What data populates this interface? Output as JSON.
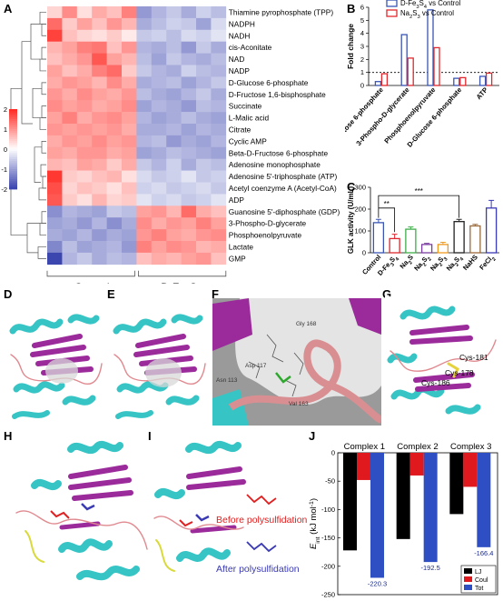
{
  "panel_labels": [
    "A",
    "B",
    "C",
    "D",
    "E",
    "F",
    "G",
    "H",
    "I",
    "J"
  ],
  "chart_data": [
    {
      "panel": "A",
      "type": "heatmap",
      "rows": [
        "Thiamine pyrophosphate (TPP)",
        "NADPH",
        "NADH",
        "cis-Aconitate",
        "NAD",
        "NADP",
        "D-Glucose 6-phosphate",
        "D-Fructose 1,6-bisphosphate",
        "Succinate",
        "L-Malic acid",
        "Citrate",
        "Cyclic AMP",
        "Beta-D-Fructose 6-phosphate",
        "Adenosine monophosphate",
        "Adenosine 5'-triphosphate (ATP)",
        "Acetyl coenzyme A (Acetyl-CoA)",
        "ADP",
        "Guanosine 5'-diphosphate (GDP)",
        "3-Phospho-D-glycerate",
        "Phosphoenolpyruvate",
        "Lactate",
        "GMP"
      ],
      "groups": [
        "Control",
        "D-Fe3S4"
      ],
      "group_sizes": [
        6,
        6
      ],
      "colorbar_ticks": [
        "2",
        "1",
        "0",
        "-1",
        "-2"
      ],
      "zlim": [
        -2,
        2
      ],
      "values": [
        [
          0.4,
          1.1,
          0.3,
          0.8,
          0.6,
          1.2,
          -1.1,
          -0.8,
          -0.6,
          -0.9,
          -0.5,
          -0.7
        ],
        [
          1.4,
          0.5,
          0.9,
          0.6,
          1.0,
          0.7,
          -0.9,
          -0.7,
          -0.5,
          -0.6,
          -1.0,
          -0.4
        ],
        [
          1.8,
          0.6,
          0.4,
          0.3,
          0.5,
          0.2,
          -0.6,
          -0.5,
          -0.7,
          -0.4,
          -0.5,
          -0.3
        ],
        [
          0.7,
          0.9,
          1.2,
          1.3,
          0.6,
          1.0,
          -0.8,
          -0.9,
          -0.7,
          -1.1,
          -0.6,
          -0.9
        ],
        [
          0.6,
          0.8,
          1.0,
          1.6,
          0.9,
          0.7,
          -0.7,
          -1.0,
          -0.6,
          -0.8,
          -0.9,
          -0.7
        ],
        [
          0.9,
          0.6,
          0.8,
          1.2,
          1.4,
          0.5,
          -0.6,
          -0.8,
          -0.9,
          -0.5,
          -0.7,
          -0.8
        ],
        [
          0.8,
          1.0,
          0.9,
          0.7,
          1.1,
          0.8,
          -0.9,
          -0.8,
          -0.7,
          -1.0,
          -0.8,
          -0.6
        ],
        [
          1.0,
          0.8,
          1.1,
          0.9,
          0.8,
          1.0,
          -0.7,
          -0.9,
          -1.0,
          -0.8,
          -0.6,
          -0.9
        ],
        [
          1.1,
          0.9,
          1.0,
          0.8,
          0.9,
          1.1,
          -1.0,
          -0.8,
          -0.9,
          -1.1,
          -0.7,
          -0.8
        ],
        [
          0.9,
          1.2,
          0.8,
          1.0,
          1.1,
          0.9,
          -0.8,
          -1.0,
          -0.9,
          -0.7,
          -0.9,
          -1.0
        ],
        [
          1.0,
          0.9,
          1.0,
          0.9,
          1.0,
          0.8,
          -0.9,
          -0.9,
          -0.8,
          -1.0,
          -0.8,
          -0.9
        ],
        [
          0.8,
          1.0,
          0.9,
          1.1,
          0.9,
          1.0,
          -0.8,
          -0.7,
          -1.1,
          -0.9,
          -1.0,
          -0.8
        ],
        [
          0.9,
          0.8,
          1.0,
          1.0,
          0.8,
          0.9,
          -1.0,
          -0.9,
          -0.7,
          -0.8,
          -0.9,
          -1.0
        ],
        [
          0.7,
          0.6,
          0.9,
          0.8,
          0.5,
          0.8,
          -0.6,
          -0.8,
          -0.5,
          -0.9,
          -0.6,
          -0.7
        ],
        [
          1.9,
          0.5,
          0.4,
          0.6,
          0.7,
          0.3,
          -0.4,
          -0.6,
          -0.5,
          -0.3,
          -0.6,
          -0.5
        ],
        [
          1.7,
          0.4,
          0.6,
          0.5,
          0.3,
          0.6,
          -0.5,
          -0.4,
          -0.6,
          -0.5,
          -0.4,
          -0.6
        ],
        [
          1.6,
          0.5,
          0.3,
          0.7,
          0.4,
          0.5,
          -0.3,
          -0.5,
          -0.4,
          -0.6,
          -0.5,
          -0.3
        ],
        [
          -1.2,
          -0.8,
          -0.9,
          -1.0,
          -0.6,
          -0.7,
          0.9,
          1.0,
          0.7,
          1.4,
          0.8,
          0.6
        ],
        [
          -1.0,
          -0.9,
          -1.1,
          -0.8,
          -1.2,
          -0.9,
          1.1,
          0.8,
          1.0,
          0.9,
          1.2,
          0.9
        ],
        [
          -0.9,
          -1.0,
          -0.8,
          -1.1,
          -0.9,
          -1.0,
          1.0,
          1.2,
          0.9,
          0.8,
          1.0,
          1.1
        ],
        [
          -1.3,
          -0.7,
          -1.0,
          -0.9,
          -0.8,
          -1.1,
          1.2,
          0.9,
          1.1,
          1.0,
          0.7,
          0.8
        ],
        [
          -2.0,
          -0.8,
          -0.6,
          -0.9,
          -0.7,
          -0.8,
          0.6,
          0.8,
          0.7,
          0.9,
          1.0,
          0.6
        ]
      ]
    },
    {
      "panel": "B",
      "type": "bar",
      "ylabel": "Fold change",
      "ylim": [
        0,
        6
      ],
      "yticks": [
        0,
        1,
        2,
        3,
        4,
        5,
        6
      ],
      "reference_line": 1,
      "categories": [
        "Fructose 6-phosphate",
        "3-Phospho-D-glycerate",
        "Phosphoenolpyruvate",
        "D-Glucose 6-phosphate",
        "ATP"
      ],
      "legend": [
        "D-Fe3S4 vs Control",
        "Na2S3 vs Control"
      ],
      "series": [
        {
          "name": "D-Fe3S4 vs Control",
          "color": "#3a55b4",
          "values": [
            0.3,
            3.9,
            5.8,
            0.55,
            0.7
          ]
        },
        {
          "name": "Na2S3 vs Control",
          "color": "#e0282e",
          "values": [
            0.9,
            2.1,
            2.9,
            0.6,
            0.95
          ]
        }
      ]
    },
    {
      "panel": "C",
      "type": "bar",
      "ylabel": "GLK activity (U/mL)",
      "ylim": [
        0,
        300
      ],
      "yticks": [
        0,
        100,
        200,
        300
      ],
      "categories": [
        "Control",
        "D-Fe3S4",
        "Na2S",
        "Na2S2",
        "Na2S3",
        "Na2S4",
        "NaHS",
        "FeCl2"
      ],
      "values": [
        138,
        65,
        108,
        38,
        38,
        143,
        123,
        205
      ],
      "errors": [
        15,
        20,
        10,
        5,
        10,
        10,
        7,
        35
      ],
      "colors": [
        "#3a55b4",
        "#e0282e",
        "#3fae49",
        "#7b3fa0",
        "#f09a1e",
        "#222222",
        "#9a6a3a",
        "#3a3ab4"
      ],
      "significance": [
        {
          "label": "**",
          "from": "Control",
          "to": "D-Fe3S4"
        },
        {
          "label": "***",
          "from": "Control",
          "to": "Na2S4"
        }
      ]
    },
    {
      "panel": "J",
      "type": "bar",
      "ylabel": "E_int (kJ mol-1)",
      "ylim": [
        -250,
        0
      ],
      "yticks": [
        0,
        -50,
        -100,
        -150,
        -200,
        -250
      ],
      "categories": [
        "Complex 1",
        "Complex 2",
        "Complex 3"
      ],
      "legend": [
        "LJ",
        "Coul",
        "Tot"
      ],
      "series": [
        {
          "name": "LJ",
          "color": "#000000",
          "values": [
            -172,
            -152,
            -108
          ]
        },
        {
          "name": "Coul",
          "color": "#e0191e",
          "values": [
            -48,
            -40,
            -60
          ]
        },
        {
          "name": "Tot",
          "color": "#2e4fc4",
          "values": [
            -220.3,
            -192.5,
            -166.4
          ]
        }
      ],
      "value_labels": [
        "-220.3",
        "-192.5",
        "-166.4"
      ]
    }
  ],
  "structures": {
    "F_residues": [
      "Asp 117",
      "Gly 168",
      "Asn 113",
      "Val 163"
    ],
    "G_residues": [
      "Cys-181",
      "Cys-178",
      "Cys-186"
    ],
    "I_legend": [
      "Before polysulfidation",
      "After polysulfidation"
    ],
    "I_legend_colors": [
      "#e02020",
      "#3a3ab4"
    ]
  }
}
